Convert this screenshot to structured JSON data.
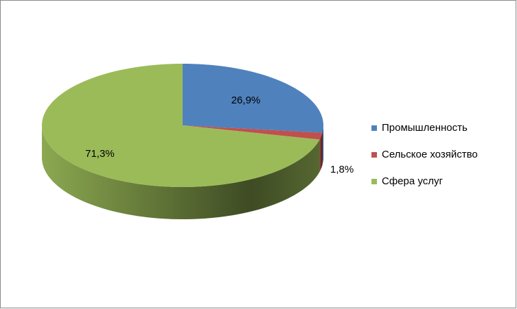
{
  "chart_data": {
    "type": "pie",
    "categories": [
      "Промышленность",
      "Сельское хозяйство",
      "Сфера услуг"
    ],
    "values": [
      26.9,
      1.8,
      71.3
    ],
    "value_labels": [
      "26,9%",
      "1,8%",
      "71,3%"
    ],
    "colors": [
      "#4f81bd",
      "#c0504d",
      "#9bbb59"
    ],
    "legend": "right"
  }
}
